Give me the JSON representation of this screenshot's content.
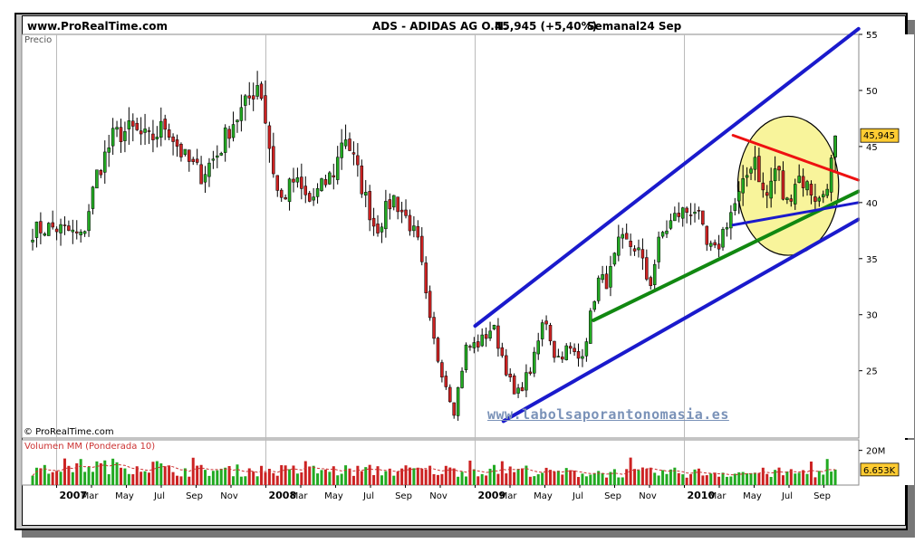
{
  "header": {
    "site": "www.ProRealTime.com",
    "instrument": "ADS - ADIDAS AG O.N.",
    "quote": "45,945 (+5,40%)",
    "period": "Semanal",
    "date": "24 Sep"
  },
  "price_panel": {
    "label": "Precio",
    "copyright": "© ProRealTime.com",
    "last_price_label": "45,945"
  },
  "volume_panel": {
    "label": "Volumen MM (Ponderada 10)",
    "last_volume_label": "6.653K"
  },
  "watermark": "www.labolsaporantonomasia.es",
  "colors": {
    "up_candle": "#22aa22",
    "down_candle": "#cc2222",
    "channel_line": "#1a1acc",
    "support_line": "#118811",
    "resistance_line": "#ee1111",
    "ellipse_fill": "#f5f07a",
    "last_price_badge": "#ffcc33",
    "volume_badge": "#ffcc33"
  },
  "chart_data": {
    "type": "candlestick",
    "price_axis": {
      "ylim": [
        19,
        55
      ],
      "ticks": [
        25,
        30,
        35,
        40,
        45,
        50,
        55
      ]
    },
    "volume_axis": {
      "ticks": [
        "20M"
      ]
    },
    "x_ticks": [
      {
        "label": "2007",
        "date": "2007-01",
        "year": true
      },
      {
        "label": "Mar",
        "date": "2007-03"
      },
      {
        "label": "May",
        "date": "2007-05"
      },
      {
        "label": "Jul",
        "date": "2007-07"
      },
      {
        "label": "Sep",
        "date": "2007-09"
      },
      {
        "label": "Nov",
        "date": "2007-11"
      },
      {
        "label": "2008",
        "date": "2008-01",
        "year": true
      },
      {
        "label": "Mar",
        "date": "2008-03"
      },
      {
        "label": "May",
        "date": "2008-05"
      },
      {
        "label": "Jul",
        "date": "2008-07"
      },
      {
        "label": "Sep",
        "date": "2008-09"
      },
      {
        "label": "Nov",
        "date": "2008-11"
      },
      {
        "label": "2009",
        "date": "2009-01",
        "year": true
      },
      {
        "label": "Mar",
        "date": "2009-03"
      },
      {
        "label": "May",
        "date": "2009-05"
      },
      {
        "label": "Jul",
        "date": "2009-07"
      },
      {
        "label": "Sep",
        "date": "2009-09"
      },
      {
        "label": "Nov",
        "date": "2009-11"
      },
      {
        "label": "2010",
        "date": "2010-01",
        "year": true
      },
      {
        "label": "Mar",
        "date": "2010-03"
      },
      {
        "label": "May",
        "date": "2010-05"
      },
      {
        "label": "Jul",
        "date": "2010-07"
      },
      {
        "label": "Sep",
        "date": "2010-09"
      }
    ],
    "close_anchors": [
      [
        "2006-11-20",
        37.5
      ],
      [
        "2006-12-20",
        37.8
      ],
      [
        "2007-01-20",
        37.5
      ],
      [
        "2007-02-15",
        36.8
      ],
      [
        "2007-03-10",
        42.5
      ],
      [
        "2007-04-10",
        46.0
      ],
      [
        "2007-05-10",
        46.5
      ],
      [
        "2007-06-10",
        45.5
      ],
      [
        "2007-07-10",
        47.0
      ],
      [
        "2007-08-10",
        44.0
      ],
      [
        "2007-09-10",
        42.5
      ],
      [
        "2007-10-10",
        44.5
      ],
      [
        "2007-11-01",
        47.0
      ],
      [
        "2007-11-25",
        48.5
      ],
      [
        "2007-12-20",
        51.0
      ],
      [
        "2008-01-10",
        44.0
      ],
      [
        "2008-01-25",
        40.0
      ],
      [
        "2008-02-20",
        42.0
      ],
      [
        "2008-03-15",
        40.0
      ],
      [
        "2008-04-10",
        41.5
      ],
      [
        "2008-05-01",
        43.0
      ],
      [
        "2008-05-15",
        46.5
      ],
      [
        "2008-06-10",
        42.5
      ],
      [
        "2008-07-10",
        37.5
      ],
      [
        "2008-08-10",
        40.5
      ],
      [
        "2008-09-10",
        38.0
      ],
      [
        "2008-09-25",
        36.0
      ],
      [
        "2008-10-10",
        30.0
      ],
      [
        "2008-10-25",
        26.5
      ],
      [
        "2008-11-10",
        24.0
      ],
      [
        "2008-11-25",
        21.5
      ],
      [
        "2008-12-15",
        27.0
      ],
      [
        "2009-01-10",
        27.5
      ],
      [
        "2009-02-01",
        29.0
      ],
      [
        "2009-02-20",
        26.0
      ],
      [
        "2009-03-10",
        22.5
      ],
      [
        "2009-04-10",
        25.5
      ],
      [
        "2009-05-01",
        30.0
      ],
      [
        "2009-05-20",
        26.0
      ],
      [
        "2009-06-10",
        27.0
      ],
      [
        "2009-07-01",
        26.0
      ],
      [
        "2009-07-15",
        28.5
      ],
      [
        "2009-08-01",
        33.0
      ],
      [
        "2009-08-20",
        33.0
      ],
      [
        "2009-09-10",
        36.5
      ],
      [
        "2009-10-10",
        36.0
      ],
      [
        "2009-11-01",
        32.5
      ],
      [
        "2009-11-20",
        37.0
      ],
      [
        "2009-12-20",
        39.0
      ],
      [
        "2010-01-20",
        39.5
      ],
      [
        "2010-02-10",
        36.0
      ],
      [
        "2010-02-25",
        35.5
      ],
      [
        "2010-03-15",
        38.5
      ],
      [
        "2010-04-10",
        41.0
      ],
      [
        "2010-05-01",
        44.5
      ],
      [
        "2010-05-20",
        40.0
      ],
      [
        "2010-06-10",
        43.5
      ],
      [
        "2010-06-25",
        39.5
      ],
      [
        "2010-07-15",
        42.5
      ],
      [
        "2010-08-10",
        41.0
      ],
      [
        "2010-08-25",
        40.0
      ],
      [
        "2010-09-10",
        42.5
      ],
      [
        "2010-09-24",
        45.945
      ]
    ],
    "volume_level": {
      "typical": 8,
      "unit": "M"
    },
    "trendlines": [
      {
        "name": "upper-channel",
        "from": [
          "2009-01-01",
          29.0
        ],
        "to": [
          "2010-10-31",
          55.5
        ]
      },
      {
        "name": "lower-channel",
        "from": [
          "2009-02-20",
          20.5
        ],
        "to": [
          "2010-10-31",
          38.5
        ]
      },
      {
        "name": "support",
        "from": [
          "2009-07-25",
          29.5
        ],
        "to": [
          "2010-10-31",
          41.0
        ]
      },
      {
        "name": "triangle-resistance",
        "from": [
          "2010-03-25",
          46.0
        ],
        "to": [
          "2010-10-31",
          42.0
        ]
      },
      {
        "name": "triangle-support",
        "from": [
          "2010-03-25",
          38.0
        ],
        "to": [
          "2010-10-31",
          40.0
        ]
      }
    ],
    "highlight_ellipse": {
      "center": [
        "2010-06-30",
        41.5
      ],
      "x_radius_days": 88,
      "y_radius": 6.2
    }
  }
}
